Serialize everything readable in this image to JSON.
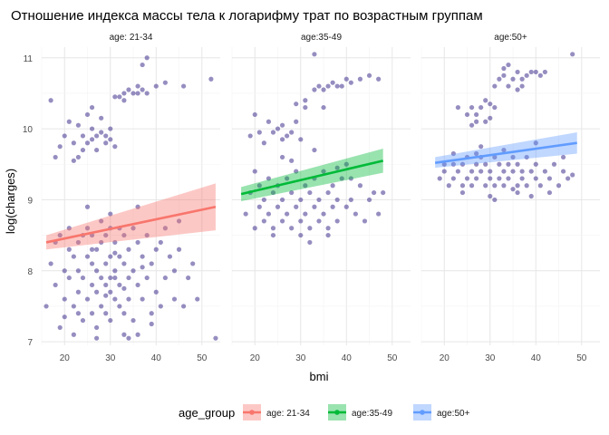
{
  "chart_data": {
    "type": "scatter",
    "title": "Отношение индекса массы тела к логарифму трат по возрастным группам",
    "xlabel": "bmi",
    "ylabel": "log(charges)",
    "xlim": [
      15,
      54
    ],
    "ylim": [
      6.95,
      11.15
    ],
    "x_ticks": [
      20,
      30,
      40,
      50
    ],
    "y_ticks": [
      7,
      8,
      9,
      10,
      11
    ],
    "grid": true,
    "legend_placement": "bottom",
    "legend_title": "age_group",
    "point_color": "#3f2f8c",
    "panels": [
      {
        "label": "age: 21-34",
        "color": "#f8766d",
        "trend": {
          "x0": 16,
          "y0": 8.4,
          "x1": 53,
          "y1": 8.9,
          "band_lo0": 8.3,
          "band_hi0": 8.5,
          "band_lo1": 8.57,
          "band_hi1": 9.23
        },
        "points": [
          [
            17,
            10.4
          ],
          [
            18,
            9.6
          ],
          [
            19,
            9.75
          ],
          [
            20,
            9.9
          ],
          [
            21,
            10.1
          ],
          [
            22,
            9.55
          ],
          [
            22,
            9.8
          ],
          [
            23,
            10.05
          ],
          [
            24,
            9.7
          ],
          [
            24,
            9.9
          ],
          [
            25,
            10.2
          ],
          [
            25,
            9.8
          ],
          [
            26,
            9.85
          ],
          [
            26,
            10.0
          ],
          [
            27,
            9.9
          ],
          [
            27,
            9.7
          ],
          [
            28,
            9.95
          ],
          [
            28,
            10.15
          ],
          [
            29,
            9.8
          ],
          [
            29,
            9.9
          ],
          [
            30,
            9.85
          ],
          [
            30,
            10.0
          ],
          [
            31,
            9.75
          ],
          [
            26,
            10.3
          ],
          [
            23,
            9.6
          ],
          [
            31,
            10.45
          ],
          [
            32,
            10.45
          ],
          [
            33,
            10.5
          ],
          [
            33,
            10.4
          ],
          [
            34,
            10.55
          ],
          [
            35,
            10.5
          ],
          [
            36,
            10.5
          ],
          [
            36,
            10.6
          ],
          [
            37,
            10.55
          ],
          [
            38,
            10.5
          ],
          [
            37,
            10.9
          ],
          [
            38,
            11.0
          ],
          [
            40,
            10.6
          ],
          [
            42,
            10.65
          ],
          [
            46,
            10.6
          ],
          [
            52,
            10.7
          ],
          [
            16,
            7.5
          ],
          [
            17,
            8.1
          ],
          [
            18,
            8.4
          ],
          [
            18,
            7.8
          ],
          [
            19,
            8.5
          ],
          [
            19,
            7.2
          ],
          [
            20,
            8.0
          ],
          [
            20,
            7.6
          ],
          [
            21,
            8.3
          ],
          [
            21,
            7.9
          ],
          [
            21,
            8.6
          ],
          [
            22,
            7.5
          ],
          [
            22,
            8.2
          ],
          [
            22,
            7.1
          ],
          [
            23,
            8.4
          ],
          [
            23,
            7.7
          ],
          [
            23,
            8.0
          ],
          [
            24,
            8.5
          ],
          [
            24,
            7.3
          ],
          [
            24,
            7.9
          ],
          [
            25,
            8.2
          ],
          [
            25,
            7.6
          ],
          [
            25,
            8.6
          ],
          [
            26,
            7.8
          ],
          [
            26,
            8.1
          ],
          [
            26,
            7.4
          ],
          [
            26,
            8.5
          ],
          [
            27,
            7.7
          ],
          [
            27,
            8.3
          ],
          [
            27,
            7.2
          ],
          [
            27,
            8.0
          ],
          [
            28,
            7.9
          ],
          [
            28,
            8.4
          ],
          [
            28,
            7.5
          ],
          [
            28,
            8.7
          ],
          [
            29,
            7.8
          ],
          [
            29,
            8.1
          ],
          [
            29,
            7.4
          ],
          [
            29,
            8.5
          ],
          [
            30,
            7.7
          ],
          [
            30,
            8.2
          ],
          [
            30,
            7.9
          ],
          [
            30,
            8.6
          ],
          [
            30,
            7.3
          ],
          [
            31,
            8.0
          ],
          [
            31,
            7.6
          ],
          [
            31,
            8.4
          ],
          [
            31,
            7.9
          ],
          [
            32,
            8.2
          ],
          [
            32,
            7.5
          ],
          [
            32,
            8.6
          ],
          [
            32,
            7.8
          ],
          [
            33,
            8.1
          ],
          [
            33,
            7.4
          ],
          [
            33,
            8.5
          ],
          [
            33,
            7.1
          ],
          [
            34,
            7.9
          ],
          [
            34,
            8.3
          ],
          [
            34,
            7.6
          ],
          [
            35,
            8.0
          ],
          [
            35,
            8.6
          ],
          [
            35,
            7.3
          ],
          [
            36,
            7.8
          ],
          [
            36,
            8.4
          ],
          [
            36,
            7.1
          ],
          [
            37,
            8.2
          ],
          [
            37,
            7.6
          ],
          [
            38,
            7.9
          ],
          [
            38,
            8.5
          ],
          [
            39,
            7.4
          ],
          [
            39,
            8.1
          ],
          [
            40,
            8.3
          ],
          [
            40,
            7.7
          ],
          [
            41,
            7.5
          ],
          [
            41,
            8.4
          ],
          [
            42,
            7.9
          ],
          [
            42,
            8.6
          ],
          [
            43,
            8.2
          ],
          [
            44,
            7.6
          ],
          [
            44,
            8.0
          ],
          [
            45,
            8.3
          ],
          [
            46,
            7.5
          ],
          [
            47,
            7.9
          ],
          [
            48,
            8.1
          ],
          [
            49,
            7.6
          ],
          [
            53,
            7.05
          ],
          [
            36,
            8.9
          ],
          [
            30,
            8.8
          ],
          [
            25,
            8.9
          ],
          [
            45,
            8.7
          ],
          [
            20,
            7.35
          ],
          [
            27,
            7.05
          ],
          [
            34,
            7.05
          ],
          [
            39,
            7.25
          ],
          [
            23,
            7.4
          ],
          [
            29,
            7.65
          ],
          [
            33,
            7.75
          ],
          [
            26,
            8.3
          ],
          [
            31,
            8.25
          ],
          [
            37,
            8.05
          ]
        ]
      },
      {
        "label": "age:35-49",
        "color": "#00ba38",
        "trend": {
          "x0": 17,
          "y0": 9.08,
          "x1": 48,
          "y1": 9.55,
          "band_lo0": 8.98,
          "band_hi0": 9.18,
          "band_lo1": 9.38,
          "band_hi1": 9.72
        },
        "points": [
          [
            19,
            9.9
          ],
          [
            20,
            10.2
          ],
          [
            21,
            9.95
          ],
          [
            22,
            9.8
          ],
          [
            23,
            10.1
          ],
          [
            24,
            9.95
          ],
          [
            25,
            10.0
          ],
          [
            26,
            10.05
          ],
          [
            26,
            9.85
          ],
          [
            27,
            9.9
          ],
          [
            28,
            9.95
          ],
          [
            29,
            10.1
          ],
          [
            30,
            9.85
          ],
          [
            31,
            10.3
          ],
          [
            33,
            10.55
          ],
          [
            34,
            10.6
          ],
          [
            35,
            10.55
          ],
          [
            36,
            10.6
          ],
          [
            37,
            10.65
          ],
          [
            38,
            10.6
          ],
          [
            39,
            10.6
          ],
          [
            40,
            10.7
          ],
          [
            41,
            10.65
          ],
          [
            43,
            10.7
          ],
          [
            45,
            10.75
          ],
          [
            47,
            10.7
          ],
          [
            33,
            11.05
          ],
          [
            31,
            10.4
          ],
          [
            35,
            10.3
          ],
          [
            29,
            10.35
          ],
          [
            18,
            8.8
          ],
          [
            19,
            9.1
          ],
          [
            20,
            8.6
          ],
          [
            21,
            9.2
          ],
          [
            21,
            8.9
          ],
          [
            22,
            9.0
          ],
          [
            22,
            8.7
          ],
          [
            23,
            9.3
          ],
          [
            23,
            8.8
          ],
          [
            24,
            9.1
          ],
          [
            24,
            8.6
          ],
          [
            25,
            9.2
          ],
          [
            25,
            8.9
          ],
          [
            26,
            9.0
          ],
          [
            26,
            8.7
          ],
          [
            27,
            9.3
          ],
          [
            27,
            8.8
          ],
          [
            28,
            9.1
          ],
          [
            28,
            8.6
          ],
          [
            29,
            9.4
          ],
          [
            29,
            8.9
          ],
          [
            30,
            9.0
          ],
          [
            30,
            8.7
          ],
          [
            31,
            9.2
          ],
          [
            31,
            8.8
          ],
          [
            32,
            9.1
          ],
          [
            32,
            8.6
          ],
          [
            33,
            9.3
          ],
          [
            33,
            8.9
          ],
          [
            34,
            9.0
          ],
          [
            34,
            8.7
          ],
          [
            35,
            9.4
          ],
          [
            35,
            8.8
          ],
          [
            36,
            9.1
          ],
          [
            36,
            8.6
          ],
          [
            37,
            9.2
          ],
          [
            37,
            8.9
          ],
          [
            38,
            9.0
          ],
          [
            38,
            8.7
          ],
          [
            39,
            9.3
          ],
          [
            40,
            8.9
          ],
          [
            40,
            9.5
          ],
          [
            41,
            9.0
          ],
          [
            42,
            8.8
          ],
          [
            43,
            9.2
          ],
          [
            44,
            8.7
          ],
          [
            45,
            9.0
          ],
          [
            46,
            9.1
          ],
          [
            47,
            8.8
          ],
          [
            48,
            9.1
          ],
          [
            20,
            9.4
          ],
          [
            26,
            9.6
          ],
          [
            33,
            9.7
          ],
          [
            41,
            9.3
          ],
          [
            24,
            8.5
          ],
          [
            30,
            8.5
          ],
          [
            36,
            8.5
          ],
          [
            28,
            9.55
          ],
          [
            38,
            9.45
          ],
          [
            32,
            8.4
          ]
        ]
      },
      {
        "label": "age:50+",
        "color": "#619cff",
        "trend": {
          "x0": 18,
          "y0": 9.52,
          "x1": 49,
          "y1": 9.8,
          "band_lo0": 9.45,
          "band_hi0": 9.6,
          "band_lo1": 9.65,
          "band_hi1": 9.95
        },
        "points": [
          [
            20,
            9.5
          ],
          [
            23,
            10.3
          ],
          [
            25,
            10.2
          ],
          [
            26,
            10.05
          ],
          [
            26,
            10.3
          ],
          [
            27,
            10.2
          ],
          [
            28,
            10.3
          ],
          [
            29,
            10.1
          ],
          [
            30,
            10.15
          ],
          [
            31,
            10.3
          ],
          [
            32,
            10.7
          ],
          [
            33,
            10.75
          ],
          [
            34,
            10.9
          ],
          [
            35,
            10.7
          ],
          [
            36,
            10.8
          ],
          [
            37,
            10.7
          ],
          [
            38,
            10.75
          ],
          [
            39,
            10.8
          ],
          [
            40,
            10.8
          ],
          [
            41,
            10.75
          ],
          [
            31,
            10.6
          ],
          [
            34,
            10.6
          ],
          [
            37,
            10.6
          ],
          [
            30,
            10.35
          ],
          [
            27,
            10.1
          ],
          [
            48,
            11.05
          ],
          [
            29,
            10.4
          ],
          [
            33,
            10.85
          ],
          [
            36,
            10.55
          ],
          [
            42,
            10.8
          ],
          [
            19,
            9.3
          ],
          [
            20,
            9.4
          ],
          [
            21,
            9.2
          ],
          [
            22,
            9.5
          ],
          [
            22,
            9.3
          ],
          [
            23,
            9.4
          ],
          [
            24,
            9.2
          ],
          [
            24,
            9.5
          ],
          [
            25,
            9.3
          ],
          [
            25,
            9.6
          ],
          [
            26,
            9.4
          ],
          [
            26,
            9.2
          ],
          [
            27,
            9.5
          ],
          [
            27,
            9.3
          ],
          [
            28,
            9.4
          ],
          [
            28,
            9.6
          ],
          [
            29,
            9.2
          ],
          [
            29,
            9.5
          ],
          [
            30,
            9.3
          ],
          [
            30,
            9.4
          ],
          [
            31,
            9.6
          ],
          [
            31,
            9.2
          ],
          [
            32,
            9.5
          ],
          [
            32,
            9.3
          ],
          [
            33,
            9.4
          ],
          [
            33,
            9.2
          ],
          [
            34,
            9.5
          ],
          [
            34,
            9.3
          ],
          [
            35,
            9.6
          ],
          [
            35,
            9.4
          ],
          [
            36,
            9.2
          ],
          [
            36,
            9.5
          ],
          [
            37,
            9.3
          ],
          [
            37,
            9.4
          ],
          [
            38,
            9.6
          ],
          [
            38,
            9.2
          ],
          [
            39,
            9.4
          ],
          [
            40,
            9.3
          ],
          [
            40,
            9.5
          ],
          [
            41,
            9.2
          ],
          [
            42,
            9.4
          ],
          [
            43,
            9.3
          ],
          [
            44,
            9.5
          ],
          [
            45,
            9.2
          ],
          [
            46,
            9.4
          ],
          [
            47,
            9.3
          ],
          [
            48,
            9.35
          ],
          [
            24,
            9.1
          ],
          [
            30,
            9.05
          ],
          [
            36,
            9.1
          ],
          [
            33,
            9.7
          ],
          [
            28,
            9.75
          ],
          [
            40,
            9.8
          ],
          [
            22,
            9.65
          ],
          [
            46,
            9.6
          ],
          [
            35,
            9.15
          ],
          [
            39,
            9.05
          ],
          [
            27,
            9.65
          ],
          [
            31,
            9.0
          ],
          [
            43,
            9.1
          ]
        ]
      }
    ]
  }
}
